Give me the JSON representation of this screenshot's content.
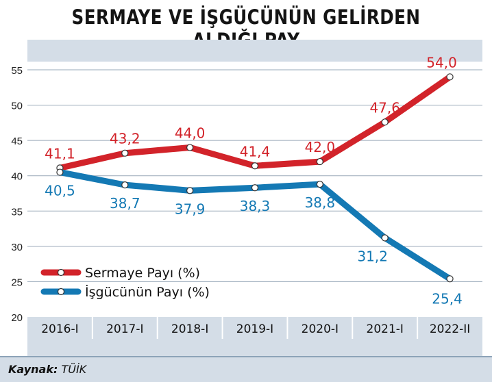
{
  "title": "SERMAYE VE İŞGÜCÜNÜN GELİRDEN ALDIĞI PAY",
  "source": {
    "label": "Kaynak:",
    "value": "TÜİK"
  },
  "colors": {
    "capital": "#d2232a",
    "labor": "#1479b4",
    "band": "#d4dde7",
    "grid": "#9aa9b9"
  },
  "chart_data": {
    "type": "line",
    "categories": [
      "2016-I",
      "2017-I",
      "2018-I",
      "2019-I",
      "2020-I",
      "2021-I",
      "2022-II"
    ],
    "series": [
      {
        "name": "Sermaye Payı (%)",
        "values": [
          41.1,
          43.2,
          44.0,
          41.4,
          42.0,
          47.6,
          54.0
        ],
        "labels": [
          "41,1",
          "43,2",
          "44,0",
          "41,4",
          "42,0",
          "47,6",
          "54,0"
        ]
      },
      {
        "name": "İşgücünün Payı (%)",
        "values": [
          40.5,
          38.7,
          37.9,
          38.3,
          38.8,
          31.2,
          25.4
        ],
        "labels": [
          "40,5",
          "38,7",
          "37,9",
          "38,3",
          "38,8",
          "31,2",
          "25,4"
        ]
      }
    ],
    "yticks": [
      20,
      25,
      30,
      35,
      40,
      45,
      50,
      55
    ],
    "ylim": [
      20,
      55
    ],
    "grid": true,
    "legend": "bottom-left",
    "xlabel": "",
    "ylabel": ""
  }
}
